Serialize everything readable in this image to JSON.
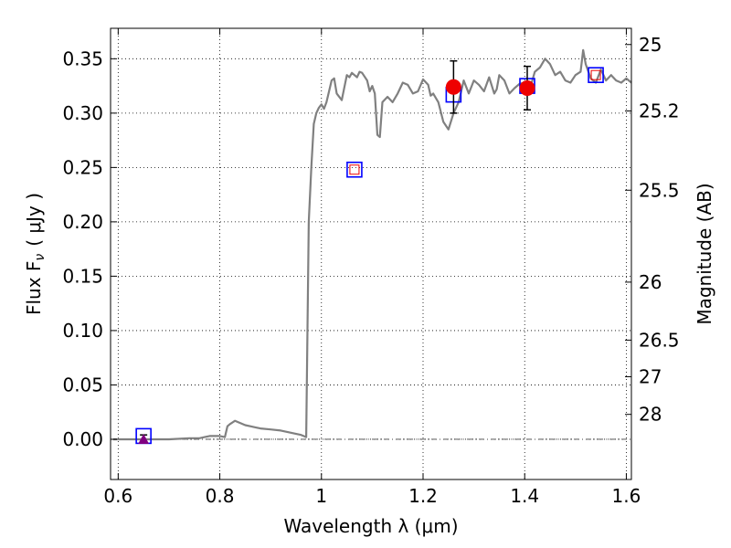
{
  "chart_data": {
    "type": "line",
    "xlabel": "Wavelength  λ (μm)",
    "ylabel": "Flux  F",
    "ylabel_subscript": "ν",
    "ylabel_unit": "( μJy )",
    "y2label": "Magnitude (AB)",
    "xlim": [
      0.585,
      1.61
    ],
    "ylim": [
      -0.037,
      0.378
    ],
    "grid": true,
    "x_ticks": [
      {
        "value": 0.6,
        "label": "0.6"
      },
      {
        "value": 0.8,
        "label": "0.8"
      },
      {
        "value": 1.0,
        "label": "1"
      },
      {
        "value": 1.2,
        "label": "1.2"
      },
      {
        "value": 1.4,
        "label": "1.4"
      },
      {
        "value": 1.6,
        "label": "1.6"
      }
    ],
    "y_ticks": [
      {
        "value": 0.0,
        "label": "0.00"
      },
      {
        "value": 0.05,
        "label": "0.05"
      },
      {
        "value": 0.1,
        "label": "0.10"
      },
      {
        "value": 0.15,
        "label": "0.15"
      },
      {
        "value": 0.2,
        "label": "0.20"
      },
      {
        "value": 0.25,
        "label": "0.25"
      },
      {
        "value": 0.3,
        "label": "0.30"
      },
      {
        "value": 0.35,
        "label": "0.35"
      }
    ],
    "y2_ticks": [
      {
        "mag": 25,
        "label": "25"
      },
      {
        "mag": 25.2,
        "label": "25.2"
      },
      {
        "mag": 25.5,
        "label": "25.5"
      },
      {
        "mag": 26,
        "label": "26"
      },
      {
        "mag": 26.5,
        "label": "26.5"
      },
      {
        "mag": 27,
        "label": "27"
      },
      {
        "mag": 28,
        "label": "28"
      }
    ],
    "model_spectrum": {
      "color": "#808080",
      "x": [
        0.59,
        0.65,
        0.7,
        0.74,
        0.76,
        0.77,
        0.78,
        0.8,
        0.81,
        0.815,
        0.82,
        0.83,
        0.84,
        0.85,
        0.86,
        0.87,
        0.88,
        0.9,
        0.92,
        0.94,
        0.96,
        0.965,
        0.97,
        0.975,
        0.98,
        0.985,
        0.99,
        0.995,
        1.0,
        1.005,
        1.01,
        1.02,
        1.025,
        1.03,
        1.04,
        1.05,
        1.055,
        1.06,
        1.07,
        1.075,
        1.08,
        1.09,
        1.095,
        1.1,
        1.105,
        1.11,
        1.115,
        1.12,
        1.13,
        1.14,
        1.15,
        1.16,
        1.17,
        1.18,
        1.19,
        1.2,
        1.21,
        1.215,
        1.22,
        1.23,
        1.24,
        1.25,
        1.26,
        1.27,
        1.28,
        1.29,
        1.3,
        1.31,
        1.32,
        1.33,
        1.34,
        1.345,
        1.35,
        1.36,
        1.37,
        1.38,
        1.39,
        1.4,
        1.41,
        1.42,
        1.43,
        1.44,
        1.45,
        1.46,
        1.47,
        1.48,
        1.49,
        1.5,
        1.51,
        1.515,
        1.52,
        1.53,
        1.54,
        1.55,
        1.56,
        1.57,
        1.58,
        1.59,
        1.6,
        1.61
      ],
      "y": [
        0.0,
        0.0,
        0.0,
        0.001,
        0.001,
        0.002,
        0.003,
        0.003,
        0.002,
        0.012,
        0.014,
        0.017,
        0.015,
        0.013,
        0.012,
        0.011,
        0.01,
        0.009,
        0.008,
        0.006,
        0.004,
        0.003,
        0.002,
        0.2,
        0.25,
        0.29,
        0.3,
        0.305,
        0.308,
        0.304,
        0.31,
        0.33,
        0.332,
        0.318,
        0.312,
        0.335,
        0.333,
        0.337,
        0.333,
        0.338,
        0.337,
        0.33,
        0.32,
        0.325,
        0.318,
        0.28,
        0.278,
        0.31,
        0.315,
        0.31,
        0.318,
        0.328,
        0.326,
        0.318,
        0.32,
        0.331,
        0.326,
        0.316,
        0.318,
        0.31,
        0.292,
        0.285,
        0.3,
        0.31,
        0.33,
        0.318,
        0.33,
        0.326,
        0.32,
        0.333,
        0.318,
        0.322,
        0.335,
        0.33,
        0.318,
        0.323,
        0.327,
        0.328,
        0.322,
        0.338,
        0.342,
        0.35,
        0.345,
        0.335,
        0.338,
        0.33,
        0.328,
        0.335,
        0.338,
        0.358,
        0.345,
        0.332,
        0.328,
        0.34,
        0.33,
        0.335,
        0.33,
        0.328,
        0.332,
        0.328
      ]
    },
    "observed_points": {
      "color": "#ee0000",
      "points": [
        {
          "x": 1.26,
          "y": 0.324,
          "err": 0.024
        },
        {
          "x": 1.405,
          "y": 0.323,
          "err": 0.02
        }
      ]
    },
    "upper_limit": {
      "color": "#800080",
      "x": 0.65,
      "y": 0.0,
      "err": 0.004
    },
    "model_boxes_blue": {
      "color": "#0000ff",
      "points": [
        {
          "x": 0.65,
          "y": 0.003
        },
        {
          "x": 1.065,
          "y": 0.248
        },
        {
          "x": 1.26,
          "y": 0.317
        },
        {
          "x": 1.405,
          "y": 0.325
        },
        {
          "x": 1.54,
          "y": 0.335
        }
      ]
    },
    "model_boxes_red": {
      "color": "#ee0000",
      "points": [
        {
          "x": 1.065,
          "y": 0.248
        },
        {
          "x": 1.54,
          "y": 0.335
        }
      ]
    }
  }
}
